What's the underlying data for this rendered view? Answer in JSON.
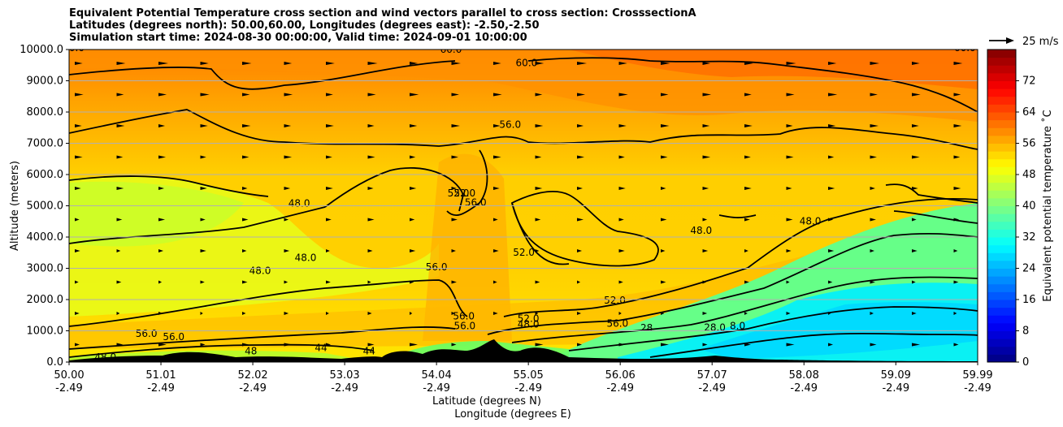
{
  "figure": {
    "title_lines": [
      "Equivalent Potential Temperature cross section and wind vectors parallel to cross section: CrosssectionA",
      "Latitudes (degrees north): 50.00,60.00, Longitudes (degrees east): -2.50,-2.50",
      "Simulation start time: 2024-08-30 00:00:00, Valid time: 2024-09-01 10:00:00"
    ]
  },
  "chart_data": {
    "type": "heatmap",
    "ylabel": "Altitude (meters)",
    "xlabel_line1": "Latitude (degrees N)",
    "xlabel_line2": "Longitude (degrees E)",
    "ylim": [
      0,
      10000
    ],
    "y_ticks": [
      {
        "value": 0,
        "label": "0.0"
      },
      {
        "value": 1000,
        "label": "1000.0"
      },
      {
        "value": 2000,
        "label": "2000.0"
      },
      {
        "value": 3000,
        "label": "3000.0"
      },
      {
        "value": 4000,
        "label": "4000.0"
      },
      {
        "value": 5000,
        "label": "5000.0"
      },
      {
        "value": 6000,
        "label": "6000.0"
      },
      {
        "value": 7000,
        "label": "7000.0"
      },
      {
        "value": 8000,
        "label": "8000.0"
      },
      {
        "value": 9000,
        "label": "9000.0"
      },
      {
        "value": 10000,
        "label": "10000.0"
      }
    ],
    "xlim": [
      50.0,
      59.99
    ],
    "x_ticks": [
      {
        "value": 50.0,
        "lat": "50.00",
        "lon": "-2.49"
      },
      {
        "value": 51.01,
        "lat": "51.01",
        "lon": "-2.49"
      },
      {
        "value": 52.02,
        "lat": "52.02",
        "lon": "-2.49"
      },
      {
        "value": 53.03,
        "lat": "53.03",
        "lon": "-2.49"
      },
      {
        "value": 54.04,
        "lat": "54.04",
        "lon": "-2.49"
      },
      {
        "value": 55.05,
        "lat": "55.05",
        "lon": "-2.49"
      },
      {
        "value": 56.06,
        "lat": "56.06",
        "lon": "-2.49"
      },
      {
        "value": 57.07,
        "lat": "57.07",
        "lon": "-2.49"
      },
      {
        "value": 58.08,
        "lat": "58.08",
        "lon": "-2.49"
      },
      {
        "value": 59.09,
        "lat": "59.09",
        "lon": "-2.49"
      },
      {
        "value": 59.99,
        "lat": "59.99",
        "lon": "-2.49"
      }
    ],
    "horizontal_grid": true,
    "colorbar": {
      "label": "Equivalent potential temperature $^\\circ$C",
      "label_text": "Equivalent potential temperature ˚C",
      "range": [
        0,
        80
      ],
      "ticks": [
        0,
        8,
        16,
        24,
        32,
        40,
        48,
        56,
        64,
        72
      ],
      "colormap": "jet"
    },
    "quiver_key": {
      "label": "25 m/s",
      "value": 25
    },
    "contour_interval": 4,
    "contour_labels": [
      {
        "text": "60.0",
        "x": 50.05,
        "y": 9950
      },
      {
        "text": "60.0",
        "x": 54.2,
        "y": 9900
      },
      {
        "text": "60.0",
        "x": 55.03,
        "y": 9470
      },
      {
        "text": "60.0",
        "x": 59.85,
        "y": 9950
      },
      {
        "text": "56.0",
        "x": 54.85,
        "y": 7500
      },
      {
        "text": "48.0",
        "x": 52.53,
        "y": 4970
      },
      {
        "text": "48.0",
        "x": 52.6,
        "y": 3230
      },
      {
        "text": "48.0",
        "x": 52.1,
        "y": 2820
      },
      {
        "text": "52.0",
        "x": 54.28,
        "y": 5300
      },
      {
        "text": "52.0",
        "x": 54.35,
        "y": 5300
      },
      {
        "text": "56.0",
        "x": 54.47,
        "y": 5000
      },
      {
        "text": "56.0",
        "x": 54.04,
        "y": 2930
      },
      {
        "text": "52.0",
        "x": 55.0,
        "y": 3400
      },
      {
        "text": "52.0",
        "x": 56.0,
        "y": 1870
      },
      {
        "text": "48.0",
        "x": 56.95,
        "y": 4100
      },
      {
        "text": "48.0",
        "x": 58.15,
        "y": 4400
      },
      {
        "text": "56.0",
        "x": 54.34,
        "y": 1370
      },
      {
        "text": "56.0",
        "x": 54.35,
        "y": 1050
      },
      {
        "text": "52.0",
        "x": 55.05,
        "y": 1290
      },
      {
        "text": "48.0",
        "x": 55.05,
        "y": 1100
      },
      {
        "text": "56.0",
        "x": 56.03,
        "y": 1130
      },
      {
        "text": "28",
        "x": 56.35,
        "y": 990
      },
      {
        "text": "28.0",
        "x": 57.1,
        "y": 1000
      },
      {
        "text": "8.0",
        "x": 57.35,
        "y": 1050
      },
      {
        "text": "56.0",
        "x": 50.85,
        "y": 800
      },
      {
        "text": "56.0",
        "x": 51.15,
        "y": 700
      },
      {
        "text": "48.0",
        "x": 50.4,
        "y": 50
      },
      {
        "text": "44",
        "x": 52.77,
        "y": 350
      },
      {
        "text": "44",
        "x": 53.3,
        "y": 250
      },
      {
        "text": "48",
        "x": 52.0,
        "y": 250
      }
    ]
  }
}
